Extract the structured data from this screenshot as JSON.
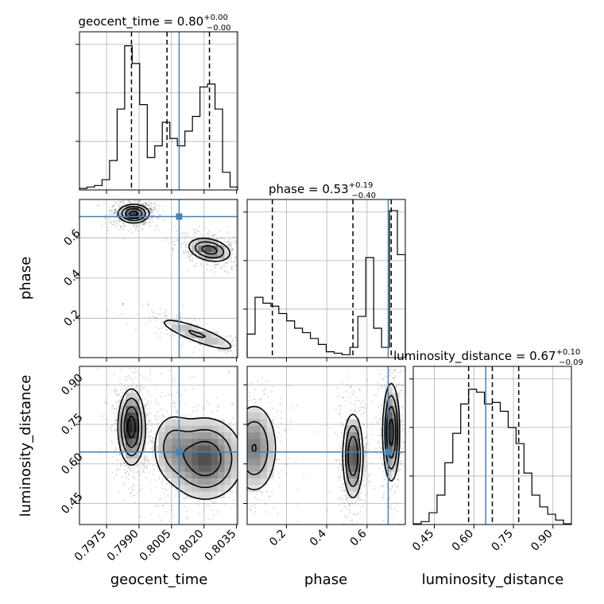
{
  "chart_data": {
    "type": "corner",
    "parameters": [
      "geocent_time",
      "phase",
      "luminosity_distance"
    ],
    "truths": {
      "geocent_time": 0.80085,
      "phase": 0.705,
      "luminosity_distance": 0.645
    },
    "titles": [
      {
        "param": "geocent_time",
        "text": "geocent_time = 0.80",
        "sup": "+0.00",
        "sub": "−0.00"
      },
      {
        "param": "phase",
        "text": "phase = 0.53",
        "sup": "+0.19",
        "sub": "−0.40"
      },
      {
        "param": "luminosity_distance",
        "text": "luminosity_distance = 0.67",
        "sup": "+0.10",
        "sub": "−0.09"
      }
    ],
    "axes": {
      "geocent_time": {
        "range": [
          0.79625,
          0.80355
        ],
        "ticks": [
          0.7975,
          0.799,
          0.8005,
          0.802,
          0.8035
        ],
        "tick_labels": [
          "0.7975",
          "0.7990",
          "0.8005",
          "0.8020",
          "0.8035"
        ]
      },
      "phase": {
        "range": [
          0.005,
          0.79
        ],
        "ticks": [
          0.2,
          0.4,
          0.6
        ],
        "tick_labels": [
          "0.2",
          "0.4",
          "0.6"
        ]
      },
      "luminosity_distance": {
        "range": [
          0.37,
          0.97
        ],
        "ticks": [
          0.45,
          0.6,
          0.75,
          0.9
        ],
        "tick_labels": [
          "0.45",
          "0.60",
          "0.75",
          "0.90"
        ]
      }
    },
    "histograms": {
      "geocent_time": {
        "counts": [
          0.01,
          0.02,
          0.03,
          0.07,
          0.2,
          0.55,
          0.98,
          0.86,
          0.58,
          0.22,
          0.3,
          0.46,
          0.35,
          0.3,
          0.4,
          0.5,
          0.7,
          0.72,
          0.55,
          0.12,
          0.02
        ],
        "quantiles": [
          0.79865,
          0.80029,
          0.80225
        ]
      },
      "phase": {
        "counts": [
          0.16,
          0.41,
          0.37,
          0.35,
          0.3,
          0.25,
          0.2,
          0.17,
          0.13,
          0.09,
          0.04,
          0.03,
          0.02,
          0.07,
          0.28,
          0.68,
          0.2,
          0.07,
          1.0,
          0.7
        ],
        "quantiles": [
          0.13,
          0.53,
          0.72
        ]
      },
      "luminosity_distance": {
        "counts": [
          0.005,
          0.02,
          0.08,
          0.2,
          0.42,
          0.62,
          0.82,
          0.92,
          0.9,
          0.82,
          0.83,
          0.77,
          0.66,
          0.55,
          0.35,
          0.2,
          0.12,
          0.07,
          0.03,
          0.005
        ],
        "quantiles": [
          0.58,
          0.67,
          0.77
        ]
      }
    },
    "modes": {
      "geocent_time__phase": [
        {
          "x": 0.79875,
          "y": 0.72,
          "sx": 0.00035,
          "sy": 0.022,
          "rho": 0,
          "w": 1.0
        },
        {
          "x": 0.80225,
          "y": 0.54,
          "sx": 0.0005,
          "sy": 0.03,
          "rho": -0.3,
          "w": 0.7
        },
        {
          "x": 0.8017,
          "y": 0.12,
          "sx": 0.0011,
          "sy": 0.05,
          "rho": -0.85,
          "w": 0.32
        }
      ],
      "geocent_time__luminosity_distance": [
        {
          "x": 0.79865,
          "y": 0.74,
          "sx": 0.0003,
          "sy": 0.07,
          "rho": 0,
          "w": 1.0
        },
        {
          "x": 0.80205,
          "y": 0.62,
          "sx": 0.0009,
          "sy": 0.08,
          "rho": 0,
          "w": 0.75
        },
        {
          "x": 0.8005,
          "y": 0.67,
          "sx": 0.0005,
          "sy": 0.07,
          "rho": 0,
          "w": 0.3
        }
      ],
      "phase__luminosity_distance": [
        {
          "x": 0.04,
          "y": 0.66,
          "sx": 0.06,
          "sy": 0.09,
          "rho": 0,
          "w": 0.55
        },
        {
          "x": 0.53,
          "y": 0.63,
          "sx": 0.025,
          "sy": 0.08,
          "rho": 0,
          "w": 0.85
        },
        {
          "x": 0.72,
          "y": 0.72,
          "sx": 0.02,
          "sy": 0.09,
          "rho": 0,
          "w": 1.0
        }
      ]
    },
    "grid": true,
    "truth_color": "#4682b4",
    "line_color": "#000000"
  }
}
